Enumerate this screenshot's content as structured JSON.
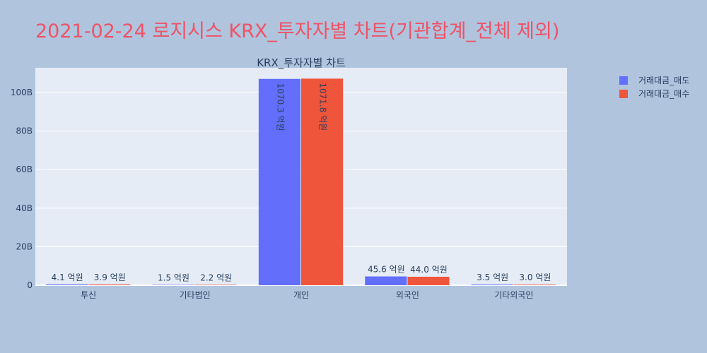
{
  "page": {
    "title": "2021-02-24 로지시스 KRX_투자자별 차트(기관합계_전체 제외)",
    "background": "#b0c4de",
    "title_color": "#ef5366"
  },
  "chart_data": {
    "type": "bar",
    "title": "KRX_투자자별 차트",
    "categories": [
      "투신",
      "기타법인",
      "개인",
      "외국인",
      "기타외국인"
    ],
    "series": [
      {
        "name": "거래대금_매도",
        "color": "#636efa",
        "values": [
          410000000,
          150000000,
          107030000000,
          4560000000,
          350000000
        ],
        "labels": [
          "4.1 억원",
          "1.5 억원",
          "1070.3 억원",
          "45.6 억원",
          "3.5 억원"
        ]
      },
      {
        "name": "거래대금_매수",
        "color": "#ef553b",
        "values": [
          390000000,
          220000000,
          107180000000,
          4400000000,
          300000000
        ],
        "labels": [
          "3.9 억원",
          "2.2 억원",
          "1071.8 억원",
          "44.0 억원",
          "3.0 억원"
        ]
      }
    ],
    "y_ticks": [
      {
        "value": 0,
        "label": "0"
      },
      {
        "value": 20000000000,
        "label": "20B"
      },
      {
        "value": 40000000000,
        "label": "40B"
      },
      {
        "value": 60000000000,
        "label": "60B"
      },
      {
        "value": 80000000000,
        "label": "80B"
      },
      {
        "value": 100000000000,
        "label": "100B"
      }
    ],
    "ylim": [
      0,
      112800000000
    ],
    "grid": true,
    "legend_position": "top-right",
    "plot_background": "#e5ecf6",
    "text_color": "#2a3f5f"
  }
}
